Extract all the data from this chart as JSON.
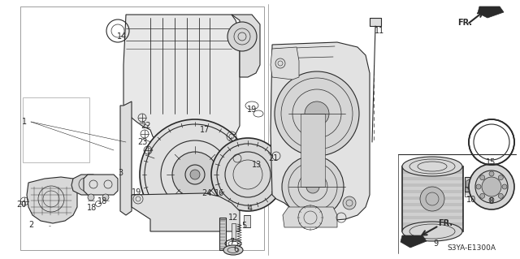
{
  "background_color": "#f5f5f5",
  "line_color": "#2a2a2a",
  "diagram_ref_text": "S3YA-E1300A",
  "figsize": [
    6.4,
    3.19
  ],
  "dpi": 100
}
